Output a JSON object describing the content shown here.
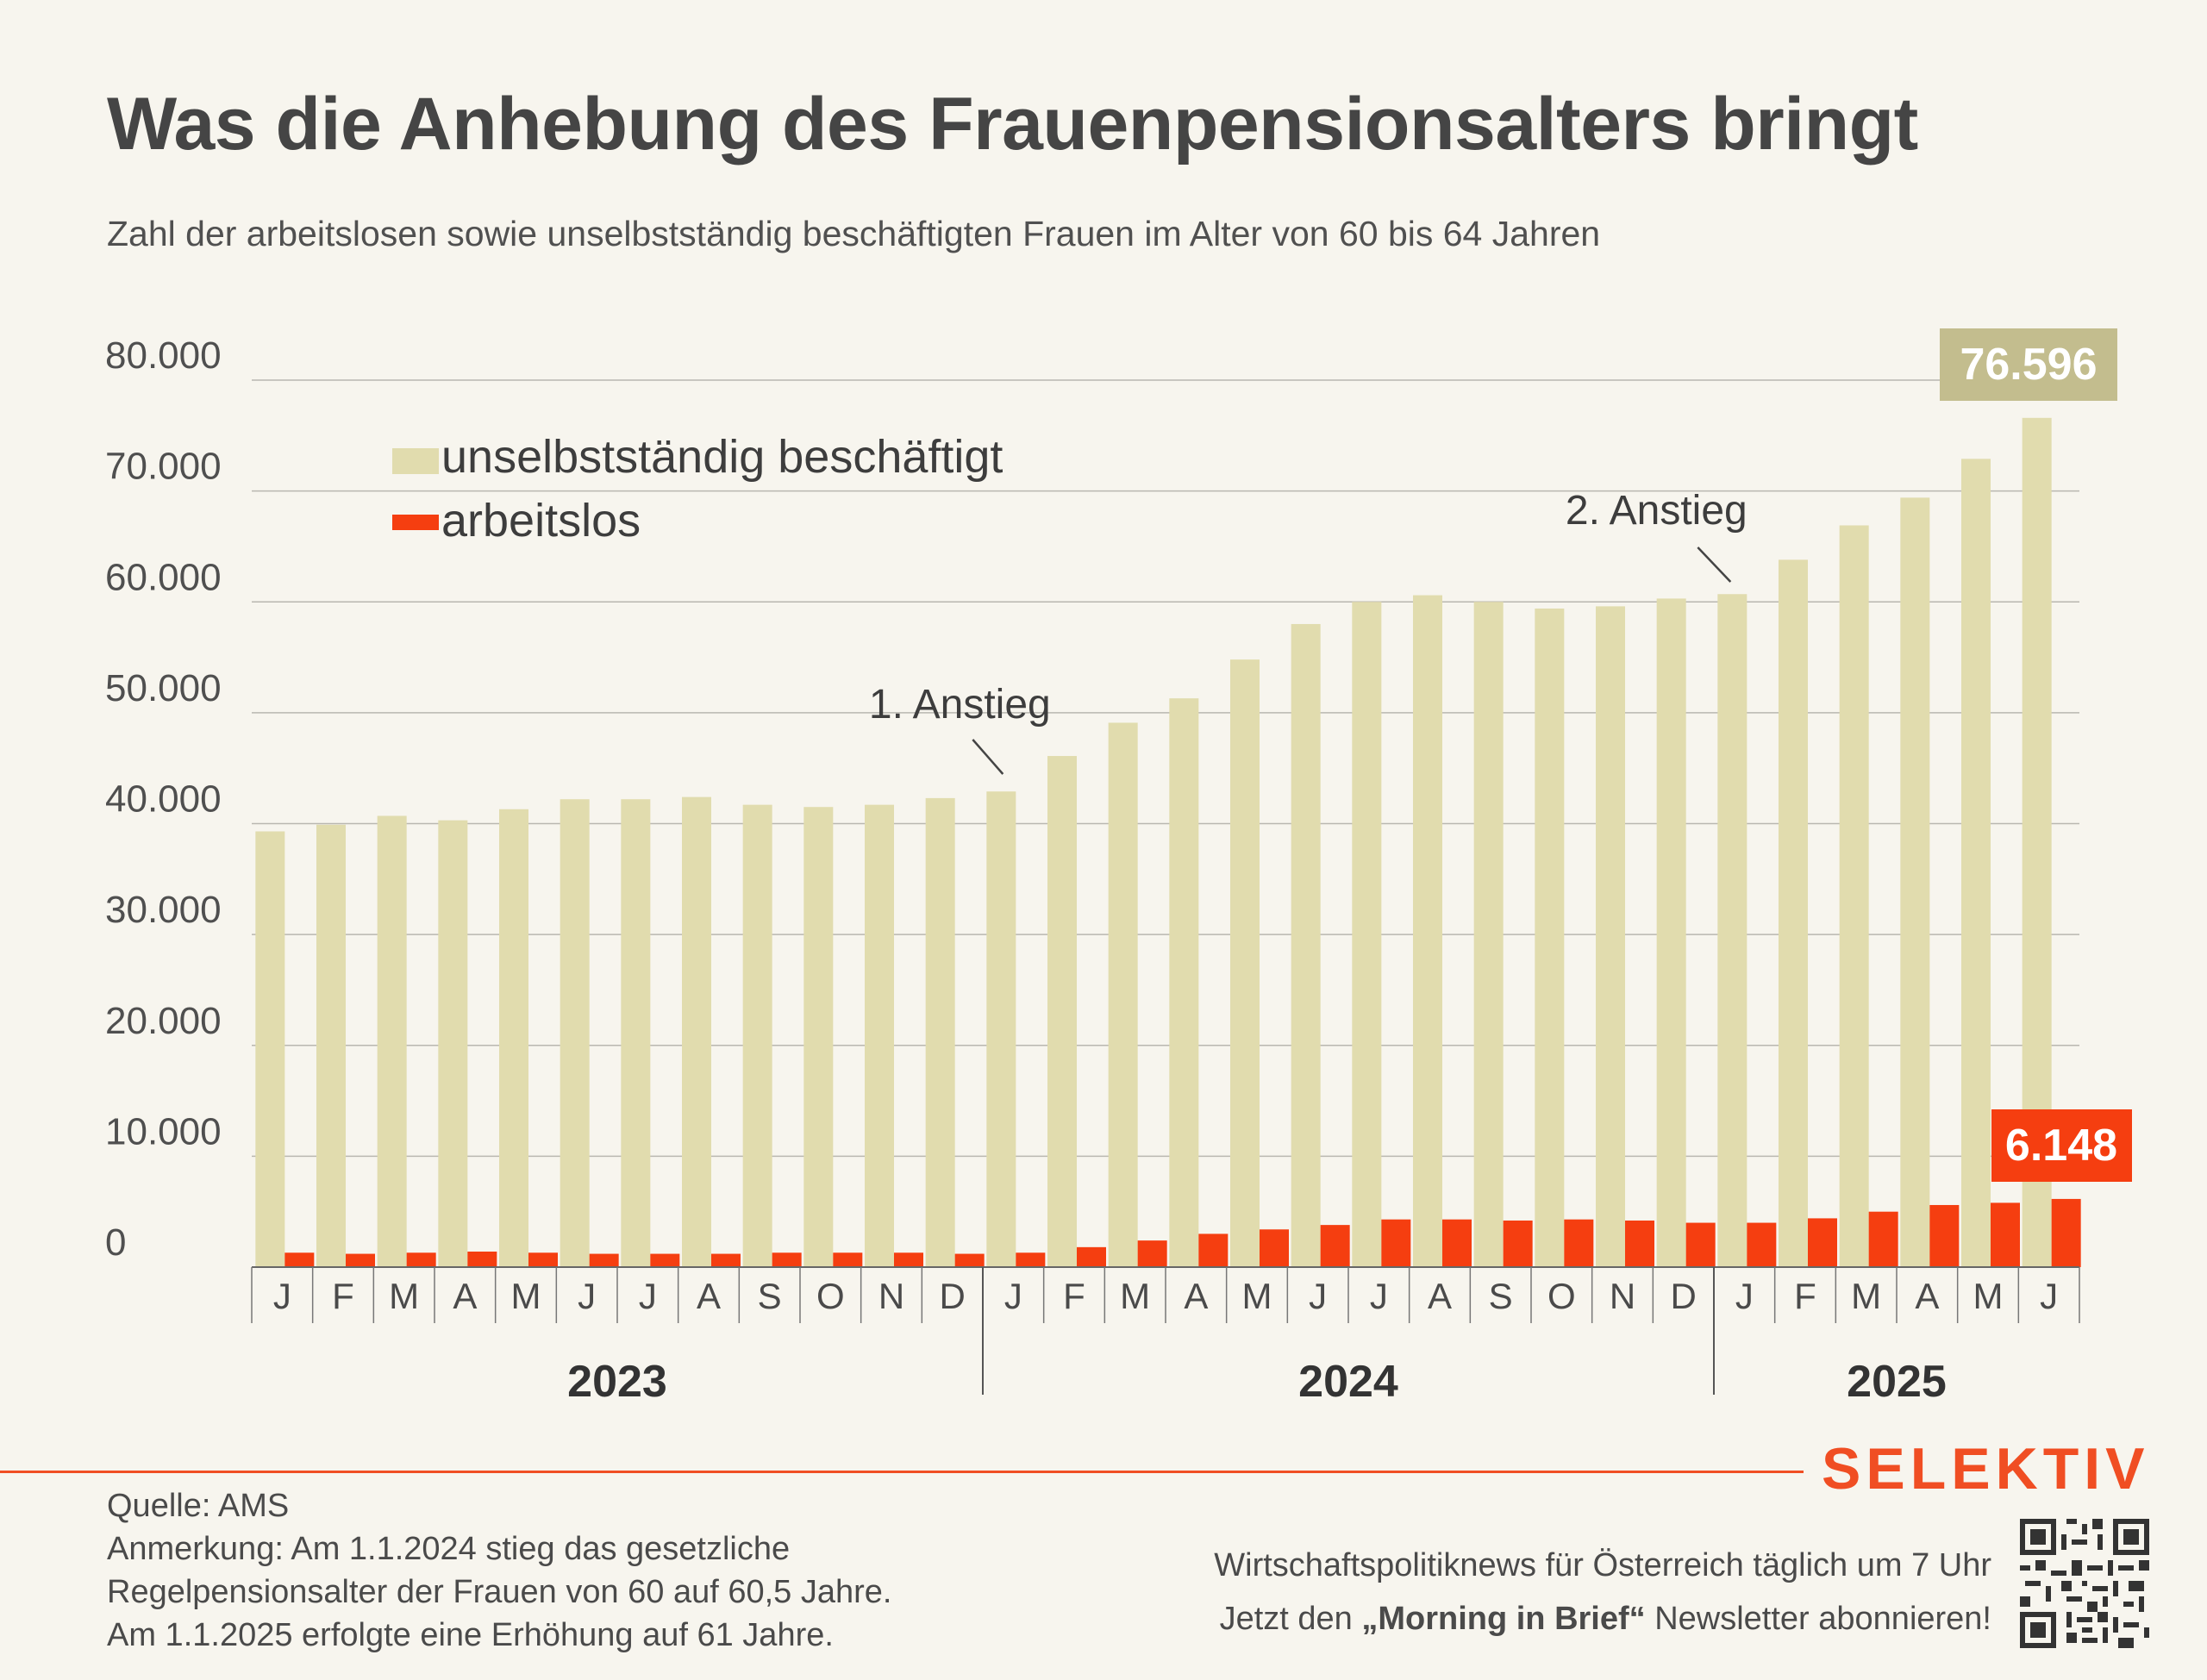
{
  "header": {
    "title": "Was die Anhebung des Frauenpensionsalters bringt",
    "subtitle": "Zahl der arbeitslosen sowie unselbstständig beschäftigten Frauen im Alter von 60 bis 64 Jahren"
  },
  "chart_data": {
    "type": "bar",
    "title": "Was die Anhebung des Frauenpensionsalters bringt",
    "subtitle": "Zahl der arbeitslosen sowie unselbstständig beschäftigten Frauen im Alter von 60 bis 64 Jahren",
    "categories": [
      "J",
      "F",
      "M",
      "A",
      "M",
      "J",
      "J",
      "A",
      "S",
      "O",
      "N",
      "D",
      "J",
      "F",
      "M",
      "A",
      "M",
      "J",
      "J",
      "A",
      "S",
      "O",
      "N",
      "D",
      "J",
      "F",
      "M",
      "A",
      "M",
      "J"
    ],
    "years": [
      {
        "label": "2023",
        "months": 12
      },
      {
        "label": "2024",
        "months": 12
      },
      {
        "label": "2025",
        "months": 6
      }
    ],
    "series": [
      {
        "name": "unselbstständig beschäftigt",
        "color": "#e1dcae",
        "values": [
          39300,
          39900,
          40700,
          40300,
          41300,
          42200,
          42200,
          42400,
          41700,
          41500,
          41700,
          42300,
          42900,
          46100,
          49100,
          51300,
          54800,
          58000,
          60000,
          60600,
          60000,
          59400,
          59600,
          60300,
          60700,
          63800,
          66900,
          69400,
          72900,
          76596
        ]
      },
      {
        "name": "arbeitslos",
        "color": "#f53e10",
        "values": [
          1300,
          1200,
          1300,
          1400,
          1300,
          1200,
          1200,
          1200,
          1300,
          1300,
          1300,
          1200,
          1300,
          1800,
          2400,
          3000,
          3400,
          3800,
          4300,
          4300,
          4200,
          4300,
          4200,
          4000,
          4000,
          4400,
          5000,
          5600,
          5800,
          6148
        ]
      }
    ],
    "y_ticks": [
      "0",
      "10.000",
      "20.000",
      "30.000",
      "40.000",
      "50.000",
      "60.000",
      "70.000",
      "80.000"
    ],
    "ylim": [
      0,
      80000
    ],
    "grid": true,
    "legend_position": "top-left",
    "value_labels": {
      "beschaeftigt_last": "76.596",
      "arbeitslos_last": "6.148"
    },
    "annotations": [
      {
        "text": "1. Anstieg",
        "index": 12
      },
      {
        "text": "2. Anstieg",
        "index": 24
      }
    ],
    "label_color_beschaeftigt": "#c3bd8e",
    "label_color_arbeitslos": "#f53e10"
  },
  "footer": {
    "source": "Quelle: AMS",
    "notes": [
      "Anmerkung: Am 1.1.2024 stieg das gesetzliche",
      "Regelpensionsalter der Frauen von 60 auf 60,5 Jahre.",
      "Am 1.1.2025 erfolgte eine Erhöhung auf 61 Jahre."
    ],
    "brand": "SELEKTIV",
    "promo_line1": "Wirtschaftspolitiknews für Österreich täglich um 7 Uhr",
    "promo_line2_pre": "Jetzt den ",
    "promo_line2_bold": "„Morning in Brief“",
    "promo_line2_post": " Newsletter abonnieren!",
    "accent_color": "#f04e23"
  }
}
